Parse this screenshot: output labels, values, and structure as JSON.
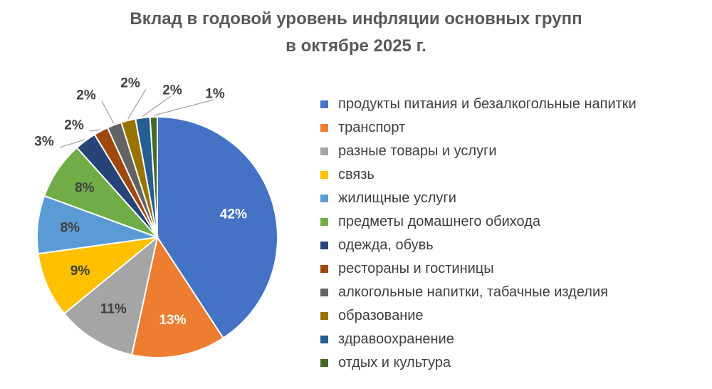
{
  "chart_data": {
    "type": "pie",
    "title": [
      "Вклад в годовой уровень инфляции основных групп",
      "в октябре 2025 г."
    ],
    "legend_position": "right",
    "slices": [
      {
        "name": "продукты питания и безалкогольные напитки",
        "value": 42,
        "label": "42%",
        "color": "#4472C4"
      },
      {
        "name": "транспорт",
        "value": 13,
        "label": "13%",
        "color": "#ED7D31"
      },
      {
        "name": "разные товары и услуги",
        "value": 11,
        "label": "11%",
        "color": "#A5A5A5"
      },
      {
        "name": "связь",
        "value": 9,
        "label": "9%",
        "color": "#FFC000"
      },
      {
        "name": "жилищные услуги",
        "value": 8,
        "label": "8%",
        "color": "#5B9BD5"
      },
      {
        "name": "предметы домашнего обихода",
        "value": 8,
        "label": "8%",
        "color": "#70AD47"
      },
      {
        "name": "одежда, обувь",
        "value": 3,
        "label": "3%",
        "color": "#264478"
      },
      {
        "name": "рестораны и гостиницы",
        "value": 2,
        "label": "2%",
        "color": "#9E480E"
      },
      {
        "name": "алкогольные напитки, табачные изделия",
        "value": 2,
        "label": "2%",
        "color": "#636363"
      },
      {
        "name": "образование",
        "value": 2,
        "label": "2%",
        "color": "#997300"
      },
      {
        "name": "здравоохранение",
        "value": 2,
        "label": "2%",
        "color": "#255E91"
      },
      {
        "name": "отдых и культура",
        "value": 1,
        "label": "1%",
        "color": "#43682B"
      }
    ]
  }
}
